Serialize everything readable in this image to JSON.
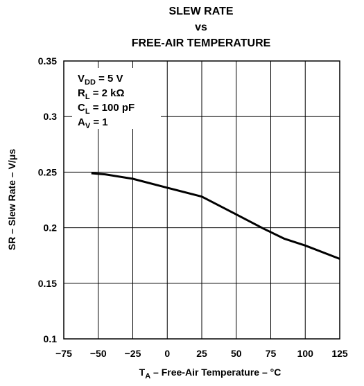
{
  "chart_data": {
    "type": "line",
    "title_lines": [
      "SLEW RATE",
      "vs",
      "FREE-AIR TEMPERATURE"
    ],
    "xlabel": {
      "main": "T",
      "sub": "A",
      "rest": " – Free-Air Temperature  – °C"
    },
    "ylabel": "SR – Slew Rate – V/μs",
    "xlim": [
      -75,
      125
    ],
    "ylim": [
      0.1,
      0.35
    ],
    "x_ticks": [
      {
        "value": -75,
        "label": "−75"
      },
      {
        "value": -50,
        "label": "−50"
      },
      {
        "value": -25,
        "label": "−25"
      },
      {
        "value": 0,
        "label": "0"
      },
      {
        "value": 25,
        "label": "25"
      },
      {
        "value": 50,
        "label": "50"
      },
      {
        "value": 75,
        "label": "75"
      },
      {
        "value": 100,
        "label": "100"
      },
      {
        "value": 125,
        "label": "125"
      }
    ],
    "y_ticks": [
      {
        "value": 0.1,
        "label": "0.1"
      },
      {
        "value": 0.15,
        "label": "0.15"
      },
      {
        "value": 0.2,
        "label": "0.2"
      },
      {
        "value": 0.25,
        "label": "0.25"
      },
      {
        "value": 0.3,
        "label": "0.3"
      },
      {
        "value": 0.35,
        "label": "0.35"
      }
    ],
    "grid": true,
    "legend": "none",
    "conditions": [
      {
        "main": "V",
        "sub": "DD",
        "rest": " = 5 V"
      },
      {
        "main": "R",
        "sub": "L",
        "rest": " = 2 kΩ"
      },
      {
        "main": "C",
        "sub": "L",
        "rest": " = 100 pF"
      },
      {
        "main": "A",
        "sub": "V",
        "rest": " = 1"
      }
    ],
    "series": [
      {
        "x": [
          -55,
          -45,
          -25,
          0,
          25,
          50,
          70,
          85,
          100,
          125
        ],
        "y": [
          0.249,
          0.248,
          0.244,
          0.236,
          0.228,
          0.212,
          0.199,
          0.19,
          0.184,
          0.172
        ]
      }
    ],
    "colors": {
      "line": "#000000",
      "grid": "#000000",
      "background": "#ffffff"
    }
  }
}
